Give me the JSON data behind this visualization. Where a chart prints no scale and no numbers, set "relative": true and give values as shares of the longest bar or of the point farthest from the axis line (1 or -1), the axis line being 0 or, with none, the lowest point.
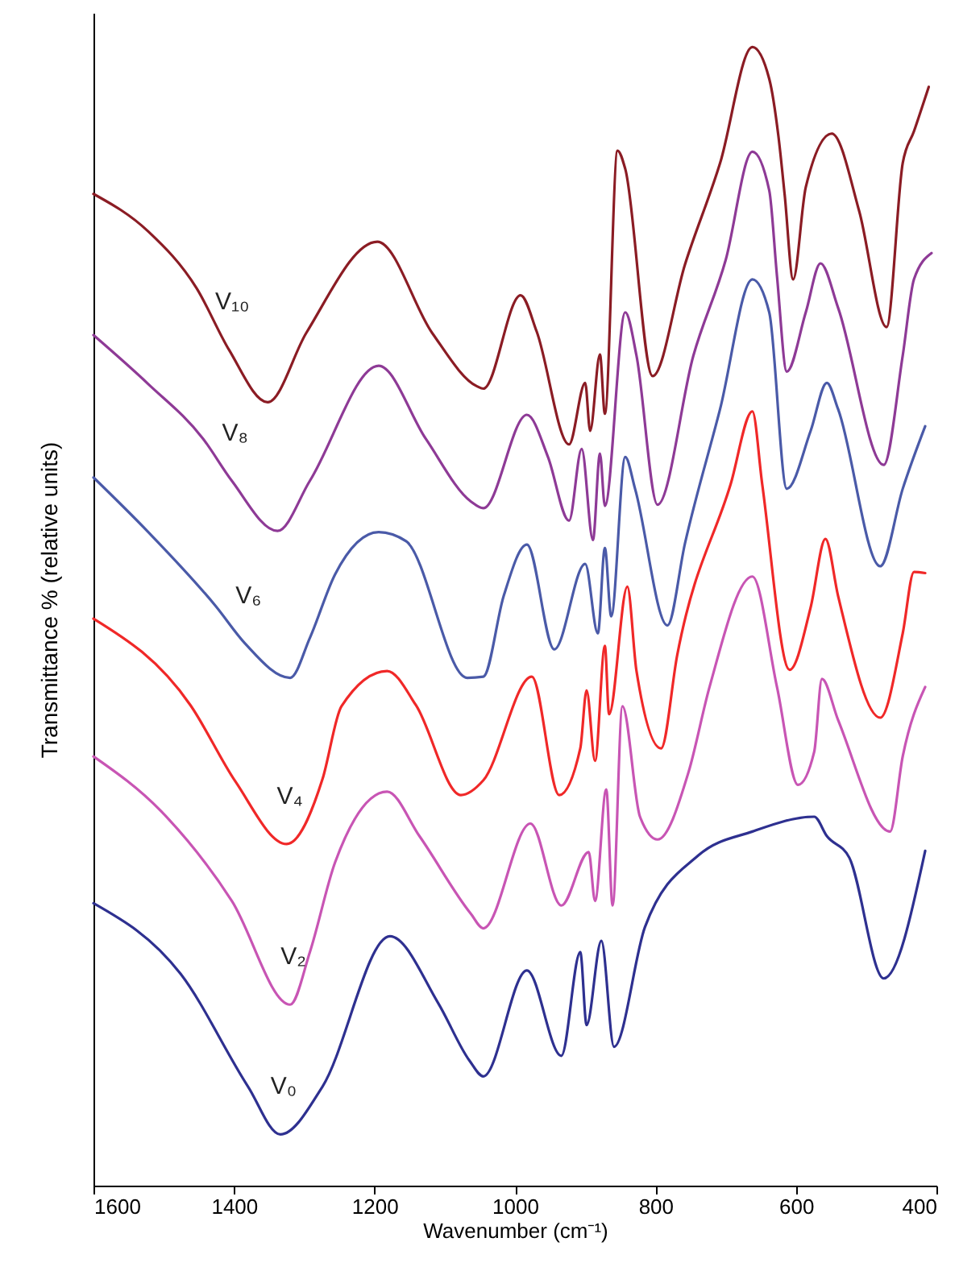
{
  "chart_data": {
    "type": "line",
    "xlabel": "Wavenumber (cm⁻¹)",
    "ylabel": "Transmittance % (relative units)",
    "relative": true,
    "xlim": [
      1600,
      400
    ],
    "xticks": [
      1600,
      1400,
      1200,
      1000,
      800,
      600,
      400
    ],
    "grid": false,
    "marker": "none",
    "line_style": "solid",
    "series": [
      {
        "name": "V₁₀",
        "color": "#8b1c24",
        "x": [
          1600,
          1522,
          1453,
          1407,
          1352,
          1297,
          1196,
          1118,
          1054,
          1045,
          992,
          969,
          923,
          900,
          893,
          879,
          872,
          854,
          843,
          804,
          758,
          708,
          662,
          638,
          625,
          616,
          604,
          586,
          549,
          510,
          471,
          448,
          432,
          411
        ],
        "values": [
          0.871,
          0.838,
          0.788,
          0.734,
          0.688,
          0.749,
          0.829,
          0.749,
          0.702,
          0.7,
          0.782,
          0.75,
          0.651,
          0.705,
          0.663,
          0.73,
          0.678,
          0.909,
          0.893,
          0.711,
          0.809,
          0.898,
          1.0,
          0.972,
          0.922,
          0.87,
          0.796,
          0.877,
          0.924,
          0.856,
          0.754,
          0.898,
          0.926,
          0.965
        ]
      },
      {
        "name": "V₈",
        "color": "#8e3a96",
        "x": [
          1600,
          1522,
          1444,
          1403,
          1338,
          1292,
          1194,
          1127,
          1063,
          1045,
          983,
          953,
          923,
          905,
          889,
          879,
          872,
          843,
          827,
          797,
          746,
          700,
          662,
          638,
          627,
          613,
          586,
          565,
          540,
          475,
          448,
          432,
          407
        ],
        "values": [
          0.747,
          0.704,
          0.656,
          0.619,
          0.575,
          0.619,
          0.72,
          0.656,
          0.601,
          0.595,
          0.677,
          0.64,
          0.584,
          0.647,
          0.567,
          0.643,
          0.597,
          0.767,
          0.729,
          0.598,
          0.729,
          0.813,
          0.908,
          0.874,
          0.799,
          0.715,
          0.767,
          0.81,
          0.771,
          0.633,
          0.729,
          0.796,
          0.819
        ]
      },
      {
        "name": "V₆",
        "color": "#4a5aa8",
        "x": [
          1600,
          1522,
          1426,
          1384,
          1320,
          1292,
          1256,
          1194,
          1155,
          1068,
          1045,
          1016,
          983,
          944,
          900,
          882,
          872,
          863,
          843,
          829,
          783,
          758,
          708,
          662,
          638,
          613,
          579,
          556,
          540,
          480,
          448,
          416
        ],
        "values": [
          0.622,
          0.574,
          0.509,
          0.476,
          0.446,
          0.481,
          0.537,
          0.574,
          0.566,
          0.446,
          0.447,
          0.518,
          0.563,
          0.471,
          0.546,
          0.485,
          0.56,
          0.5,
          0.64,
          0.612,
          0.492,
          0.564,
          0.682,
          0.796,
          0.767,
          0.612,
          0.663,
          0.705,
          0.682,
          0.544,
          0.612,
          0.667
        ]
      },
      {
        "name": "V₄",
        "color": "#f02828",
        "x": [
          1600,
          1462,
          1398,
          1325,
          1274,
          1247,
          1182,
          1141,
          1077,
          1045,
          976,
          937,
          907,
          898,
          886,
          872,
          866,
          840,
          827,
          792,
          769,
          693,
          662,
          648,
          609,
          579,
          558,
          540,
          480,
          448,
          432,
          416
        ],
        "values": [
          0.498,
          0.422,
          0.355,
          0.3,
          0.357,
          0.421,
          0.452,
          0.422,
          0.343,
          0.356,
          0.447,
          0.343,
          0.384,
          0.435,
          0.373,
          0.474,
          0.414,
          0.526,
          0.452,
          0.384,
          0.466,
          0.616,
          0.68,
          0.616,
          0.453,
          0.508,
          0.568,
          0.518,
          0.411,
          0.485,
          0.539,
          0.538
        ]
      },
      {
        "name": "V₂",
        "color": "#c855b4",
        "x": [
          1600,
          1504,
          1403,
          1320,
          1292,
          1256,
          1182,
          1136,
          1063,
          1045,
          978,
          934,
          895,
          886,
          870,
          861,
          847,
          822,
          797,
          753,
          723,
          662,
          627,
          597,
          574,
          563,
          540,
          466,
          448,
          416
        ],
        "values": [
          0.377,
          0.329,
          0.25,
          0.159,
          0.205,
          0.284,
          0.346,
          0.307,
          0.239,
          0.226,
          0.318,
          0.246,
          0.293,
          0.25,
          0.348,
          0.246,
          0.421,
          0.324,
          0.304,
          0.363,
          0.438,
          0.535,
          0.438,
          0.352,
          0.381,
          0.445,
          0.409,
          0.311,
          0.377,
          0.438
        ]
      },
      {
        "name": "V₀",
        "color": "#2e3090",
        "x": [
          1600,
          1476,
          1380,
          1334,
          1274,
          1178,
          1109,
          1065,
          1045,
          983,
          934,
          907,
          898,
          877,
          859,
          815,
          739,
          662,
          574,
          556,
          524,
          475,
          416
        ],
        "values": [
          0.248,
          0.186,
          0.087,
          0.045,
          0.087,
          0.219,
          0.16,
          0.11,
          0.096,
          0.189,
          0.114,
          0.205,
          0.141,
          0.215,
          0.122,
          0.227,
          0.29,
          0.311,
          0.324,
          0.307,
          0.288,
          0.182,
          0.294
        ]
      }
    ]
  }
}
